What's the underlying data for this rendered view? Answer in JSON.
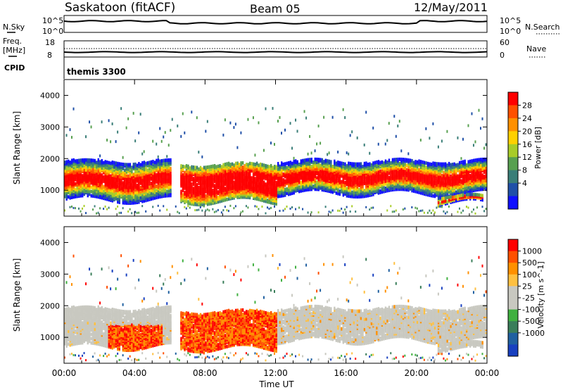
{
  "header": {
    "station": "Saskatoon (fitACF)",
    "beam": "Beam 05",
    "date": "12/May/2011"
  },
  "status_panels": {
    "nsky_label": "N.Sky",
    "nsky_ticks": [
      "10^5",
      "10^0"
    ],
    "nsearch_label": "N.Search",
    "nsearch_ticks": [
      "10^5",
      "10^0"
    ],
    "freq_label_1": "Freq.",
    "freq_label_2": "[MHz]",
    "freq_ticks": [
      "18",
      "8"
    ],
    "nave_label": "Nave",
    "nave_ticks": [
      "60",
      "0"
    ],
    "cpid_label": "CPID",
    "cpid_value": "themis 3300"
  },
  "chart_data": [
    {
      "type": "heatmap",
      "name": "power",
      "ylabel": "Slant Range [km]",
      "y_ticks": [
        "4000",
        "3000",
        "2000",
        "1000"
      ],
      "ylim": [
        180,
        4500
      ],
      "colorbar_label": "Power [dB]",
      "colorbar_ticks": [
        "28",
        "24",
        "20",
        "16",
        "12",
        "8",
        "4"
      ],
      "colorbar_colors": [
        "#1010ff",
        "#2050a8",
        "#3a7e78",
        "#58a050",
        "#a8cc28",
        "#ffd000",
        "#ff9000",
        "#ff5000",
        "#ff0000"
      ],
      "echo_bands_km": [
        {
          "start_h": 0.0,
          "end_h": 6.0,
          "low_km": 700,
          "high_km": 1900
        },
        {
          "start_h": 6.5,
          "end_h": 12.0,
          "low_km": 650,
          "high_km": 1800
        },
        {
          "start_h": 12.0,
          "end_h": 24.0,
          "low_km": 900,
          "high_km": 1900
        },
        {
          "start_h": 21.2,
          "end_h": 23.8,
          "low_km": 600,
          "high_km": 800
        }
      ]
    },
    {
      "type": "heatmap",
      "name": "velocity",
      "ylabel": "Slant Range [km]",
      "y_ticks": [
        "4000",
        "3000",
        "2000",
        "1000"
      ],
      "ylim": [
        180,
        4500
      ],
      "colorbar_label": "Velocity [m s^-1]",
      "colorbar_ticks": [
        "1000",
        "500",
        "100",
        "25",
        "-25",
        "-100",
        "-500",
        "-1000"
      ],
      "colorbar_colors": [
        "#1840c0",
        "#2060a0",
        "#3a7e5a",
        "#40b040",
        "#c8c8c0",
        "#c8c8c0",
        "#ffc040",
        "#ff9000",
        "#ff5000",
        "#ff0000"
      ]
    }
  ],
  "x_axis": {
    "ticks": [
      "00:00",
      "04:00",
      "08:00",
      "12:00",
      "16:00",
      "20:00",
      "00:00"
    ],
    "label": "Time UT"
  }
}
